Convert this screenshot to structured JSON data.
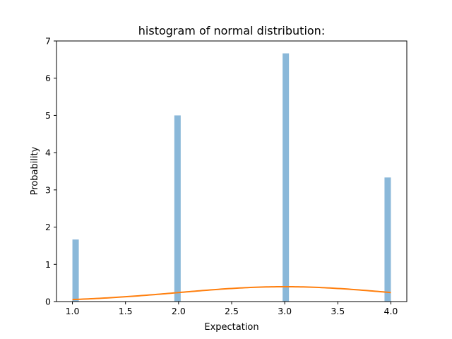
{
  "chart_data": {
    "type": "bar",
    "title": "histogram of normal distribution:",
    "xlabel": "Expectation",
    "ylabel": "Probability",
    "xlim": [
      0.85,
      4.15
    ],
    "ylim": [
      0,
      7
    ],
    "xticks": [
      1.0,
      1.5,
      2.0,
      2.5,
      3.0,
      3.5,
      4.0
    ],
    "xtick_labels": [
      "1.0",
      "1.5",
      "2.0",
      "2.5",
      "3.0",
      "3.5",
      "4.0"
    ],
    "yticks": [
      0,
      1,
      2,
      3,
      4,
      5,
      6,
      7
    ],
    "ytick_labels": [
      "0",
      "1",
      "2",
      "3",
      "4",
      "5",
      "6",
      "7"
    ],
    "grid": false,
    "bars": [
      {
        "x0": 1.0,
        "x1": 1.06,
        "value": 1.667
      },
      {
        "x0": 1.96,
        "x1": 2.02,
        "value": 5.0
      },
      {
        "x0": 2.98,
        "x1": 3.04,
        "value": 6.667
      },
      {
        "x0": 3.94,
        "x1": 4.0,
        "value": 3.333
      }
    ],
    "curve": {
      "type": "line",
      "mean": 3.0,
      "std": 1.0,
      "x_range": [
        1.0,
        4.0
      ]
    },
    "colors": {
      "bars": "#8ab8d9",
      "curve": "#ff7f0e"
    }
  }
}
